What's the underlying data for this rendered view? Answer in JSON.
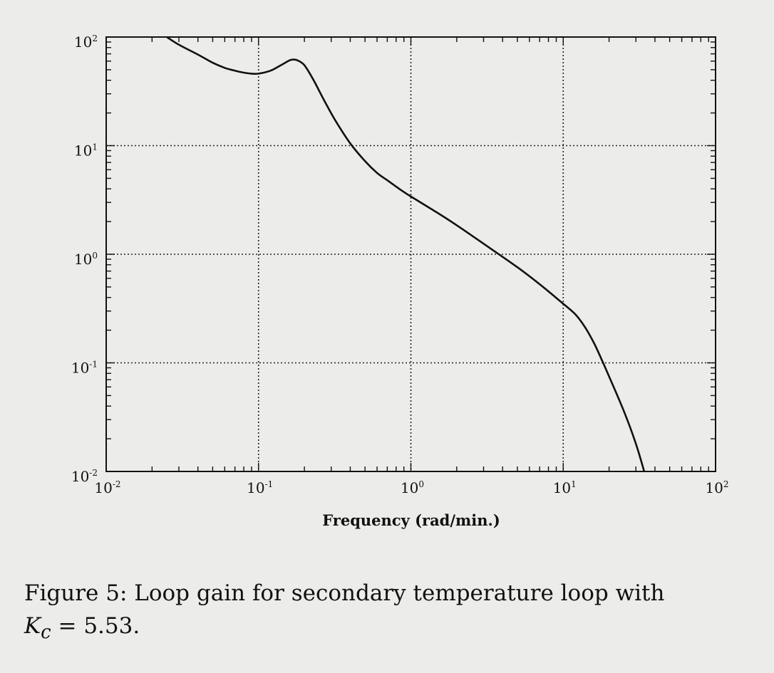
{
  "chart_data": {
    "type": "line",
    "xscale": "log",
    "yscale": "log",
    "xlim": [
      0.01,
      100
    ],
    "ylim": [
      0.01,
      100
    ],
    "grid": true,
    "xlabel": "Frequency (rad/min.)",
    "ylabel": "",
    "x_ticks": [
      {
        "base": "10",
        "exp": "-2"
      },
      {
        "base": "10",
        "exp": "-1"
      },
      {
        "base": "10",
        "exp": "0"
      },
      {
        "base": "10",
        "exp": "1"
      },
      {
        "base": "10",
        "exp": "2"
      }
    ],
    "y_ticks": [
      {
        "base": "10",
        "exp": "2"
      },
      {
        "base": "10",
        "exp": "1"
      },
      {
        "base": "10",
        "exp": "0"
      },
      {
        "base": "10",
        "exp": "-1"
      },
      {
        "base": "10",
        "exp": "-2"
      }
    ],
    "series": [
      {
        "x": [
          0.025,
          0.03,
          0.04,
          0.05,
          0.06,
          0.07,
          0.08,
          0.09,
          0.1,
          0.12,
          0.14,
          0.16,
          0.17,
          0.18,
          0.2,
          0.23,
          0.27,
          0.32,
          0.4,
          0.5,
          0.6,
          0.7,
          0.85,
          1.0,
          1.5,
          2.0,
          3.0,
          5.0,
          7.0,
          10.0,
          12.0,
          14.0,
          16.0,
          18.0,
          20.0,
          25.0,
          30.0,
          34.0
        ],
        "y": [
          100,
          85,
          69,
          58,
          52,
          49,
          47,
          46,
          46,
          49,
          55,
          61,
          62,
          61,
          55,
          40,
          26,
          17,
          10.5,
          7.2,
          5.6,
          4.8,
          3.95,
          3.4,
          2.4,
          1.85,
          1.25,
          0.76,
          0.53,
          0.35,
          0.28,
          0.21,
          0.15,
          0.105,
          0.075,
          0.036,
          0.018,
          0.01
        ]
      }
    ]
  },
  "caption": {
    "line1": "Figure 5: Loop gain for secondary temperature loop with",
    "var": "K",
    "sub": "c",
    "rest": " = 5.53."
  }
}
